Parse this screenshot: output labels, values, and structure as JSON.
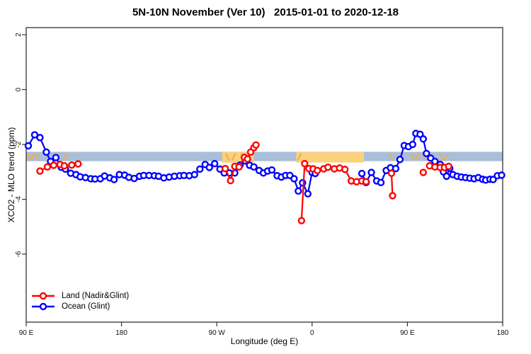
{
  "chart_data": {
    "type": "line",
    "title": "5N-10N November (Ver 10)   2015-01-01 to 2020-12-18",
    "xlabel": "Longitude (deg E)",
    "ylabel": "XCO2 - MLO trend (ppm)",
    "x_axis": {
      "range_deg": [
        0,
        450
      ],
      "ticks": [
        {
          "pos": 0,
          "label": "90 E"
        },
        {
          "pos": 90,
          "label": "180"
        },
        {
          "pos": 180,
          "label": "90 W"
        },
        {
          "pos": 270,
          "label": "0"
        },
        {
          "pos": 360,
          "label": "90 E"
        },
        {
          "pos": 450,
          "label": "180"
        }
      ]
    },
    "y_axis": {
      "range": [
        -8.48,
        2.26
      ],
      "ticks": [
        {
          "pos": 2,
          "label": "2"
        },
        {
          "pos": 0,
          "label": "0"
        },
        {
          "pos": -2,
          "label": "-2"
        },
        {
          "pos": -4,
          "label": "-4"
        },
        {
          "pos": -6,
          "label": "-6"
        }
      ]
    },
    "reference_band": {
      "y_top": -2.27,
      "y_bottom": -2.61,
      "color": "#a9bed8"
    },
    "highlight_regions": {
      "color": "#fcd07c",
      "y_top": -2.28,
      "y_bottom": -2.66,
      "regions": [
        {
          "from": 185,
          "to": 215
        },
        {
          "from": 255,
          "to": 319
        }
      ]
    },
    "band_tick_marks": {
      "color": "#f0ad4e",
      "y_center": -2.45,
      "positions": [
        3,
        6,
        10,
        37,
        190,
        196,
        205,
        258,
        345,
        354,
        365,
        369,
        376,
        381,
        392,
        397
      ]
    },
    "legend": {
      "position": "bottom-left"
    },
    "series": [
      {
        "name": "Land (Nadir&Glint)",
        "color": "#ff0000",
        "marker": "open-circle",
        "segments": [
          [
            [
              13,
              -2.97
            ],
            [
              20,
              -2.82
            ],
            [
              26,
              -2.76
            ],
            [
              32,
              -2.73
            ],
            [
              36,
              -2.78
            ],
            [
              43,
              -2.75
            ],
            [
              49,
              -2.71
            ]
          ],
          [
            [
              188,
              -2.88
            ],
            [
              193,
              -3.32
            ],
            [
              197,
              -2.8
            ],
            [
              201,
              -2.82
            ],
            [
              206,
              -2.47
            ],
            [
              209,
              -2.53
            ],
            [
              212,
              -2.28
            ],
            [
              215,
              -2.12
            ],
            [
              217,
              -2.02
            ]
          ],
          [
            [
              260,
              -4.78
            ],
            [
              263,
              -2.7
            ],
            [
              267,
              -2.88
            ],
            [
              271,
              -2.89
            ],
            [
              275,
              -2.95
            ],
            [
              281,
              -2.89
            ],
            [
              285,
              -2.83
            ],
            [
              291,
              -2.89
            ],
            [
              296,
              -2.86
            ],
            [
              301,
              -2.91
            ],
            [
              307,
              -3.33
            ],
            [
              312,
              -3.36
            ],
            [
              317,
              -3.33
            ],
            [
              321,
              -3.36
            ]
          ],
          [
            [
              345,
              -3.05
            ],
            [
              346,
              -3.87
            ]
          ],
          [
            [
              375,
              -3.02
            ]
          ],
          [
            [
              381,
              -2.78
            ],
            [
              386,
              -2.82
            ],
            [
              391,
              -2.84
            ],
            [
              395,
              -2.84
            ],
            [
              399,
              -2.8
            ]
          ]
        ]
      },
      {
        "name": "Ocean (Glint)",
        "color": "#0000ff",
        "marker": "open-circle",
        "segments": [
          [
            [
              2,
              -2.05
            ],
            [
              8,
              -1.65
            ],
            [
              13,
              -1.75
            ],
            [
              19,
              -2.28
            ],
            [
              23,
              -2.62
            ],
            [
              28,
              -2.48
            ],
            [
              33,
              -2.83
            ],
            [
              37,
              -2.9
            ],
            [
              42,
              -3.05
            ],
            [
              47,
              -3.1
            ],
            [
              51,
              -3.18
            ],
            [
              56,
              -3.21
            ],
            [
              61,
              -3.25
            ],
            [
              65,
              -3.26
            ],
            [
              70,
              -3.25
            ],
            [
              74,
              -3.15
            ],
            [
              79,
              -3.22
            ],
            [
              83,
              -3.28
            ],
            [
              88,
              -3.1
            ],
            [
              93,
              -3.12
            ],
            [
              97,
              -3.2
            ],
            [
              102,
              -3.24
            ],
            [
              107,
              -3.16
            ],
            [
              111,
              -3.13
            ],
            [
              116,
              -3.13
            ],
            [
              121,
              -3.14
            ],
            [
              125,
              -3.16
            ],
            [
              130,
              -3.22
            ],
            [
              135,
              -3.19
            ],
            [
              140,
              -3.16
            ],
            [
              145,
              -3.14
            ],
            [
              149,
              -3.13
            ],
            [
              154,
              -3.14
            ],
            [
              159,
              -3.1
            ],
            [
              164,
              -2.9
            ],
            [
              169,
              -2.73
            ],
            [
              173,
              -2.84
            ],
            [
              178,
              -2.7
            ],
            [
              183,
              -2.9
            ],
            [
              187,
              -3.04
            ],
            [
              192,
              -3.04
            ],
            [
              197,
              -3.04
            ],
            [
              202,
              -2.75
            ],
            [
              207,
              -2.6
            ],
            [
              211,
              -2.76
            ],
            [
              215,
              -2.82
            ],
            [
              220,
              -2.95
            ],
            [
              224,
              -3.04
            ],
            [
              228,
              -2.97
            ],
            [
              232,
              -2.93
            ],
            [
              237,
              -3.14
            ],
            [
              241,
              -3.19
            ],
            [
              245,
              -3.13
            ],
            [
              249,
              -3.13
            ],
            [
              253,
              -3.25
            ],
            [
              257,
              -3.7
            ],
            [
              261,
              -3.4
            ],
            [
              266,
              -3.8
            ],
            [
              270,
              -3.02
            ],
            [
              273,
              -3.06
            ]
          ],
          [
            [
              317,
              -3.06
            ],
            [
              321,
              -3.39
            ],
            [
              326,
              -3.02
            ],
            [
              331,
              -3.33
            ],
            [
              335,
              -3.39
            ],
            [
              340,
              -2.95
            ],
            [
              344,
              -2.85
            ],
            [
              349,
              -2.88
            ],
            [
              353,
              -2.55
            ],
            [
              357,
              -2.04
            ],
            [
              361,
              -2.08
            ],
            [
              365,
              -2.0
            ],
            [
              368,
              -1.6
            ],
            [
              372,
              -1.63
            ],
            [
              375,
              -1.8
            ],
            [
              378,
              -2.33
            ],
            [
              382,
              -2.5
            ],
            [
              386,
              -2.62
            ],
            [
              391,
              -2.73
            ],
            [
              394,
              -3.0
            ],
            [
              397,
              -3.16
            ],
            [
              400,
              -2.87
            ],
            [
              403,
              -3.1
            ],
            [
              407,
              -3.16
            ],
            [
              411,
              -3.19
            ],
            [
              415,
              -3.21
            ],
            [
              419,
              -3.23
            ],
            [
              423,
              -3.25
            ],
            [
              427,
              -3.21
            ],
            [
              431,
              -3.27
            ],
            [
              434,
              -3.3
            ],
            [
              438,
              -3.27
            ],
            [
              441,
              -3.28
            ],
            [
              445,
              -3.14
            ],
            [
              449,
              -3.12
            ]
          ]
        ]
      }
    ]
  }
}
